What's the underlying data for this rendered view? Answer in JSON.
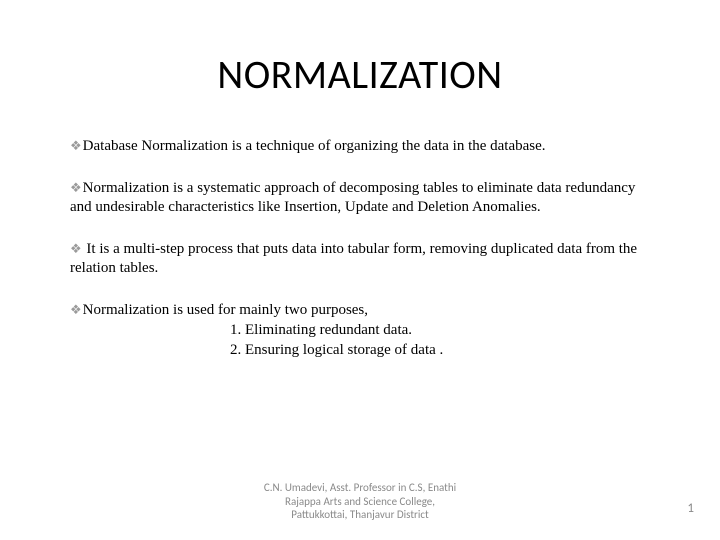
{
  "slide": {
    "title": "NORMALIZATION",
    "title_fontsize": 40,
    "title_font": "Calibri",
    "body_font": "Times New Roman",
    "body_fontsize": 15,
    "background_color": "#ffffff",
    "text_color": "#000000",
    "bullet_glyph": "❖",
    "bullet_color": "#9a9a9a",
    "bullets": [
      {
        "text": "Database Normalization is a technique of organizing the data in the database."
      },
      {
        "text": "Normalization is a systematic approach of decomposing tables to eliminate data redundancy and undesirable characteristics like Insertion, Update and Deletion Anomalies."
      },
      {
        "text": " It is a multi-step process that puts data into tabular form, removing duplicated data from the relation tables."
      },
      {
        "text": "Normalization is used for mainly two purposes,",
        "subitems": [
          "1.  Eliminating redundant data.",
          "2. Ensuring logical storage of data ."
        ]
      }
    ],
    "footer": {
      "line1": "C.N. Umadevi, Asst. Professor in C.S, Enathi",
      "line2": "Rajappa Arts and Science College,",
      "line3": "Pattukkottai, Thanjavur District",
      "color": "#8a8a8a",
      "fontsize": 11
    },
    "page_number": "1"
  }
}
